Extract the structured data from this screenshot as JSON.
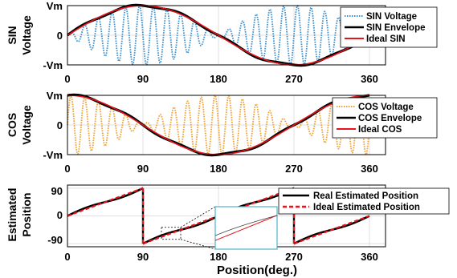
{
  "chart_data": [
    {
      "type": "line",
      "ylabel": [
        "SIN",
        "Voltage"
      ],
      "x_ticks": [
        "0",
        "90",
        "180",
        "270",
        "360"
      ],
      "y_ticks": [
        "Vm",
        "0",
        "-Vm"
      ],
      "xlim": [
        0,
        360
      ],
      "ylim": [
        -1,
        1
      ],
      "grid": true,
      "legend_position": "right",
      "series": [
        {
          "name": "SIN Voltage",
          "color": "#3a8fd0",
          "style": "dotted",
          "carrier_cycles": 22
        },
        {
          "name": "SIN Envelope",
          "color": "#000000",
          "style": "solid"
        },
        {
          "name": "Ideal SIN",
          "color": "#e8131b",
          "style": "solid"
        }
      ]
    },
    {
      "type": "line",
      "ylabel": [
        "COS",
        "Voltage"
      ],
      "x_ticks": [
        "0",
        "90",
        "180",
        "270",
        "360"
      ],
      "y_ticks": [
        "Vm",
        "0",
        "-Vm"
      ],
      "xlim": [
        0,
        360
      ],
      "ylim": [
        -1,
        1
      ],
      "grid": true,
      "legend_position": "right",
      "series": [
        {
          "name": "COS Voltage",
          "color": "#f0a030",
          "style": "dotted",
          "carrier_cycles": 22
        },
        {
          "name": "COS Envelope",
          "color": "#000000",
          "style": "solid"
        },
        {
          "name": "Ideal COS",
          "color": "#e8131b",
          "style": "solid"
        }
      ]
    },
    {
      "type": "line",
      "ylabel": [
        "Estimated",
        "Position"
      ],
      "xlabel": "Position(deg.)",
      "x_ticks": [
        "0",
        "90",
        "180",
        "270",
        "360"
      ],
      "y_ticks": [
        "90",
        "0",
        "-90"
      ],
      "xlim": [
        0,
        360
      ],
      "ylim": [
        -100,
        100
      ],
      "grid": true,
      "legend_position": "top-right",
      "inset_zoom": {
        "x_range": [
          112,
          135
        ]
      },
      "series": [
        {
          "name": "Real Estimated Position",
          "color": "#000000",
          "style": "solid"
        },
        {
          "name": "Ideal Estimated Position",
          "color": "#e8131b",
          "style": "dashed"
        }
      ]
    }
  ]
}
